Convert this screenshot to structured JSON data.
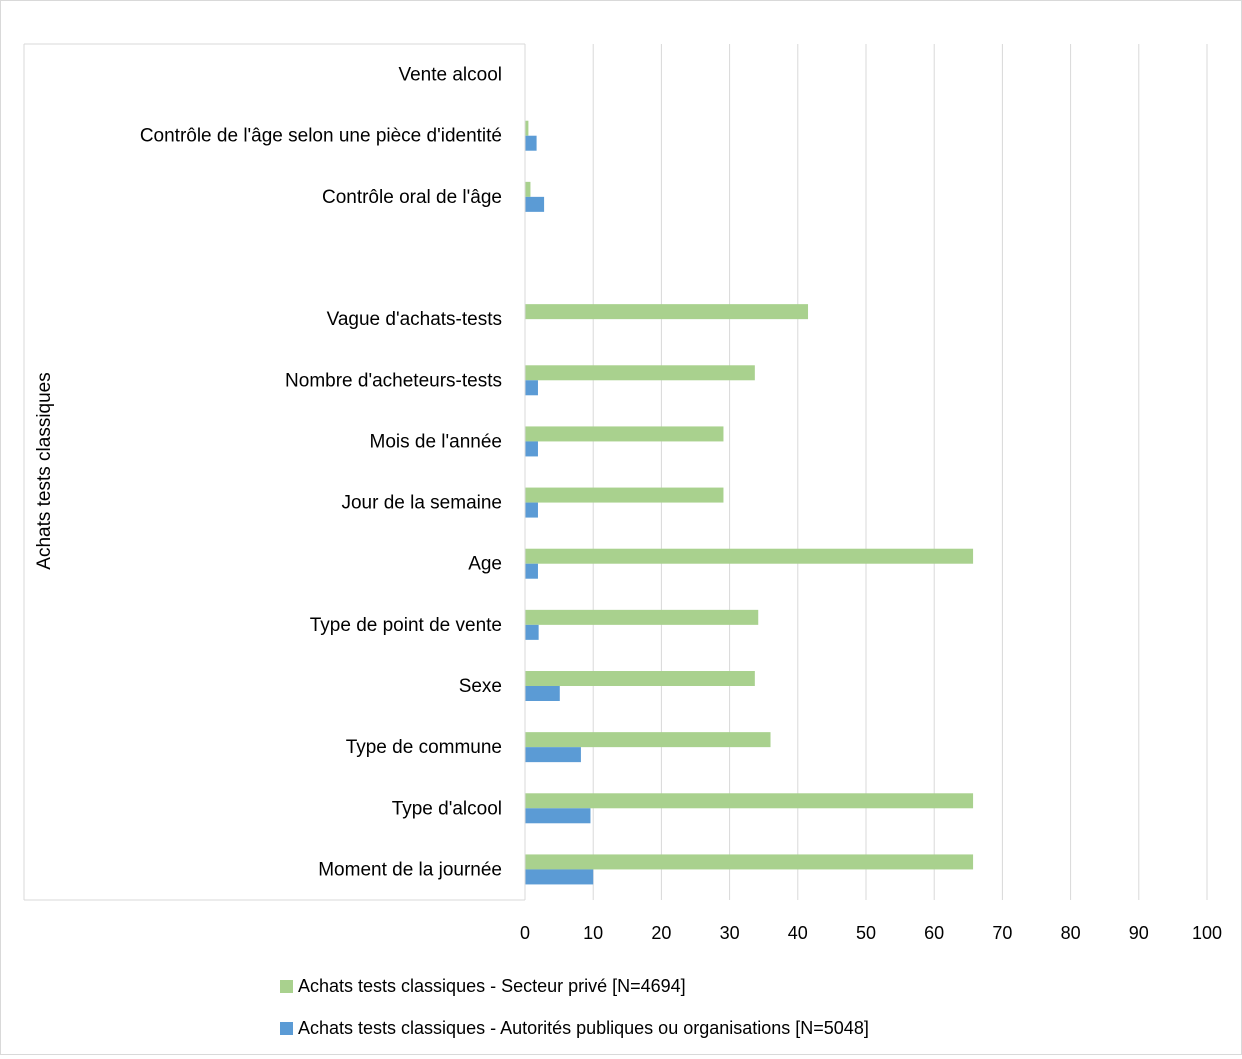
{
  "chart_data": {
    "type": "bar",
    "orientation": "horizontal",
    "group_label": "Achats tests classiques",
    "categories": [
      "Vente alcool",
      "Contrôle de l'âge selon une pièce d'identité",
      "Contrôle oral de l'âge",
      "",
      "Vague d'achats-tests",
      "Nombre d'acheteurs-tests",
      "Mois de l'année",
      "Jour de la semaine",
      "Age",
      "Type de point de vente",
      "Sexe",
      "Type de commune",
      "Type d'alcool",
      "Moment de la journée"
    ],
    "series": [
      {
        "name": "Achats tests classiques - Secteur privé [N=4694]",
        "color": "#a9d18e",
        "values": [
          null,
          0.5,
          0.8,
          null,
          41.5,
          33.7,
          29.1,
          29.1,
          65.7,
          34.2,
          33.7,
          36.0,
          65.7,
          65.7
        ]
      },
      {
        "name": "Achats tests classiques - Autorités publiques ou organisations [N=5048]",
        "color": "#5b9bd5",
        "values": [
          null,
          1.7,
          2.8,
          null,
          null,
          1.9,
          1.9,
          1.9,
          1.9,
          2.0,
          5.1,
          8.2,
          9.6,
          10.0
        ]
      }
    ],
    "x_ticks": [
      "0",
      "10",
      "20",
      "30",
      "40",
      "50",
      "60",
      "70",
      "80",
      "90",
      "100"
    ],
    "xlim": [
      0,
      100
    ],
    "grid": true,
    "legend_position": "bottom"
  }
}
